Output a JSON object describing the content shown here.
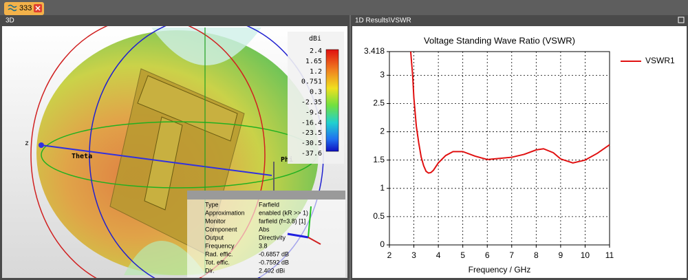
{
  "tab": {
    "label": "333"
  },
  "panels": {
    "left_title": "3D",
    "right_title": "1D Results\\VSWR"
  },
  "farfield": {
    "axis_labels": {
      "z": "z",
      "theta": "Theta",
      "phi": "Phi"
    },
    "legend": {
      "unit": "dBi",
      "labels": [
        "2.4",
        "1.65",
        "1.2",
        "0.751",
        "0.3",
        "-2.35",
        "-9.4",
        "-16.4",
        "-23.5",
        "-30.5",
        "-37.6"
      ]
    },
    "info": [
      [
        "Type",
        "Farfield"
      ],
      [
        "Approximation",
        "enabled (kR >> 1)"
      ],
      [
        "Monitor",
        "farfield (f=3.8) [1]"
      ],
      [
        "Component",
        "Abs"
      ],
      [
        "Output",
        "Directivity"
      ],
      [
        "Frequency",
        "3.8"
      ],
      [
        "Rad. effic.",
        "-0.6857 dB"
      ],
      [
        "Tot. effic.",
        "-0.7592 dB"
      ],
      [
        "Dir.",
        "2.402 dBi"
      ]
    ]
  },
  "chart_data": {
    "type": "line",
    "title": "Voltage Standing Wave Ratio (VSWR)",
    "x_label": "Frequency / GHz",
    "xlim": [
      2,
      11
    ],
    "xticks": [
      2,
      3,
      4,
      5,
      6,
      7,
      8,
      9,
      10,
      11
    ],
    "ylim": [
      0,
      3.418
    ],
    "yticks": [
      0,
      0.5,
      1,
      1.5,
      2,
      2.5,
      3,
      3.418
    ],
    "grid": true,
    "legend": "right",
    "x": [
      2.87,
      2.95,
      3.0,
      3.1,
      3.2,
      3.3,
      3.4,
      3.5,
      3.6,
      3.7,
      3.8,
      4.0,
      4.3,
      4.6,
      5.0,
      5.5,
      6.0,
      6.5,
      7.0,
      7.5,
      8.0,
      8.3,
      8.7,
      9.0,
      9.5,
      10.0,
      10.5,
      11.0
    ],
    "series": [
      {
        "name": "VSWR1",
        "color": "#e01010",
        "values": [
          3.418,
          3.0,
          2.6,
          2.1,
          1.8,
          1.55,
          1.4,
          1.3,
          1.27,
          1.28,
          1.32,
          1.45,
          1.58,
          1.65,
          1.65,
          1.57,
          1.51,
          1.53,
          1.55,
          1.6,
          1.68,
          1.7,
          1.63,
          1.52,
          1.45,
          1.5,
          1.62,
          1.77
        ]
      }
    ]
  }
}
